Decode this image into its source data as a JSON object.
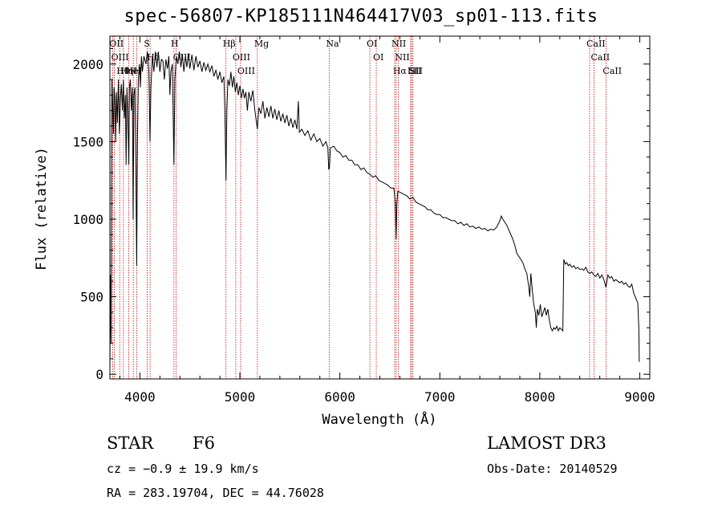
{
  "chart_data": {
    "type": "line",
    "title": "spec-56807-KP185111N464417V03_sp01-113.fits",
    "xlabel": "Wavelength (Å)",
    "ylabel": "Flux (relative)",
    "xlim": [
      3700,
      9100
    ],
    "ylim": [
      -30,
      2180
    ],
    "x_ticks": [
      4000,
      5000,
      6000,
      7000,
      8000,
      9000
    ],
    "y_ticks": [
      0,
      500,
      1000,
      1500,
      2000
    ],
    "x_tick_labels": [
      "4000",
      "5000",
      "6000",
      "7000",
      "8000",
      "9000"
    ],
    "y_tick_labels": [
      "0",
      "500",
      "1000",
      "1500",
      "2000"
    ],
    "series": [
      {
        "name": "flux",
        "points": [
          [
            3700,
            30
          ],
          [
            3705,
            640
          ],
          [
            3712,
            200
          ],
          [
            3720,
            1900
          ],
          [
            3728,
            1720
          ],
          [
            3735,
            1550
          ],
          [
            3742,
            1850
          ],
          [
            3750,
            1780
          ],
          [
            3758,
            1500
          ],
          [
            3766,
            1820
          ],
          [
            3775,
            1620
          ],
          [
            3785,
            1900
          ],
          [
            3795,
            1550
          ],
          [
            3805,
            1780
          ],
          [
            3815,
            1870
          ],
          [
            3825,
            1700
          ],
          [
            3835,
            1900
          ],
          [
            3845,
            1650
          ],
          [
            3855,
            1800
          ],
          [
            3862,
            1350
          ],
          [
            3870,
            1850
          ],
          [
            3878,
            1700
          ],
          [
            3889,
            1350
          ],
          [
            3895,
            1850
          ],
          [
            3905,
            1900
          ],
          [
            3915,
            1700
          ],
          [
            3925,
            1850
          ],
          [
            3933,
            1000
          ],
          [
            3940,
            1800
          ],
          [
            3950,
            1850
          ],
          [
            3960,
            1300
          ],
          [
            3968,
            700
          ],
          [
            3975,
            1500
          ],
          [
            3985,
            1900
          ],
          [
            3995,
            2000
          ],
          [
            4005,
            1850
          ],
          [
            4015,
            2050
          ],
          [
            4025,
            1950
          ],
          [
            4040,
            2050
          ],
          [
            4060,
            2000
          ],
          [
            4075,
            2080
          ],
          [
            4090,
            1950
          ],
          [
            4101,
            1500
          ],
          [
            4110,
            1850
          ],
          [
            4125,
            2050
          ],
          [
            4140,
            1950
          ],
          [
            4155,
            2080
          ],
          [
            4170,
            1980
          ],
          [
            4185,
            2080
          ],
          [
            4200,
            1950
          ],
          [
            4215,
            2030
          ],
          [
            4230,
            2020
          ],
          [
            4245,
            1900
          ],
          [
            4260,
            2030
          ],
          [
            4275,
            1970
          ],
          [
            4290,
            2050
          ],
          [
            4300,
            1800
          ],
          [
            4310,
            1950
          ],
          [
            4325,
            2000
          ],
          [
            4340,
            1350
          ],
          [
            4350,
            1900
          ],
          [
            4365,
            2050
          ],
          [
            4380,
            2000
          ],
          [
            4395,
            2080
          ],
          [
            4410,
            1980
          ],
          [
            4425,
            2060
          ],
          [
            4440,
            1950
          ],
          [
            4455,
            2050
          ],
          [
            4470,
            1980
          ],
          [
            4485,
            2070
          ],
          [
            4500,
            1970
          ],
          [
            4520,
            2060
          ],
          [
            4540,
            1960
          ],
          [
            4560,
            2050
          ],
          [
            4580,
            1980
          ],
          [
            4600,
            2020
          ],
          [
            4620,
            1950
          ],
          [
            4640,
            2010
          ],
          [
            4660,
            1960
          ],
          [
            4680,
            2000
          ],
          [
            4700,
            1950
          ],
          [
            4720,
            1990
          ],
          [
            4740,
            1920
          ],
          [
            4760,
            1960
          ],
          [
            4780,
            1900
          ],
          [
            4800,
            1950
          ],
          [
            4820,
            1880
          ],
          [
            4840,
            1920
          ],
          [
            4850,
            1700
          ],
          [
            4861,
            1250
          ],
          [
            4870,
            1700
          ],
          [
            4880,
            1900
          ],
          [
            4895,
            1860
          ],
          [
            4910,
            1950
          ],
          [
            4925,
            1850
          ],
          [
            4940,
            1920
          ],
          [
            4955,
            1820
          ],
          [
            4970,
            1880
          ],
          [
            4985,
            1800
          ],
          [
            5000,
            1860
          ],
          [
            5015,
            1780
          ],
          [
            5030,
            1840
          ],
          [
            5045,
            1780
          ],
          [
            5060,
            1820
          ],
          [
            5075,
            1700
          ],
          [
            5090,
            1820
          ],
          [
            5110,
            1760
          ],
          [
            5130,
            1830
          ],
          [
            5150,
            1700
          ],
          [
            5167,
            1620
          ],
          [
            5175,
            1580
          ],
          [
            5190,
            1720
          ],
          [
            5210,
            1680
          ],
          [
            5230,
            1760
          ],
          [
            5250,
            1650
          ],
          [
            5270,
            1720
          ],
          [
            5290,
            1660
          ],
          [
            5310,
            1730
          ],
          [
            5330,
            1650
          ],
          [
            5350,
            1710
          ],
          [
            5370,
            1640
          ],
          [
            5390,
            1700
          ],
          [
            5410,
            1630
          ],
          [
            5430,
            1680
          ],
          [
            5450,
            1620
          ],
          [
            5470,
            1670
          ],
          [
            5490,
            1600
          ],
          [
            5510,
            1650
          ],
          [
            5530,
            1590
          ],
          [
            5550,
            1640
          ],
          [
            5570,
            1580
          ],
          [
            5585,
            1760
          ],
          [
            5595,
            1560
          ],
          [
            5620,
            1580
          ],
          [
            5650,
            1540
          ],
          [
            5680,
            1570
          ],
          [
            5710,
            1510
          ],
          [
            5740,
            1550
          ],
          [
            5770,
            1500
          ],
          [
            5800,
            1520
          ],
          [
            5830,
            1470
          ],
          [
            5860,
            1500
          ],
          [
            5880,
            1460
          ],
          [
            5889,
            1320
          ],
          [
            5896,
            1330
          ],
          [
            5905,
            1460
          ],
          [
            5940,
            1470
          ],
          [
            5970,
            1440
          ],
          [
            6000,
            1430
          ],
          [
            6030,
            1400
          ],
          [
            6060,
            1410
          ],
          [
            6090,
            1380
          ],
          [
            6120,
            1380
          ],
          [
            6150,
            1350
          ],
          [
            6180,
            1350
          ],
          [
            6210,
            1320
          ],
          [
            6240,
            1330
          ],
          [
            6270,
            1300
          ],
          [
            6300,
            1290
          ],
          [
            6330,
            1270
          ],
          [
            6360,
            1280
          ],
          [
            6390,
            1250
          ],
          [
            6420,
            1240
          ],
          [
            6450,
            1230
          ],
          [
            6480,
            1220
          ],
          [
            6510,
            1200
          ],
          [
            6540,
            1200
          ],
          [
            6555,
            1100
          ],
          [
            6563,
            870
          ],
          [
            6570,
            1100
          ],
          [
            6580,
            1180
          ],
          [
            6610,
            1170
          ],
          [
            6640,
            1160
          ],
          [
            6670,
            1150
          ],
          [
            6700,
            1130
          ],
          [
            6730,
            1140
          ],
          [
            6760,
            1110
          ],
          [
            6790,
            1100
          ],
          [
            6820,
            1090
          ],
          [
            6850,
            1080
          ],
          [
            6880,
            1060
          ],
          [
            6910,
            1060
          ],
          [
            6940,
            1040
          ],
          [
            6970,
            1030
          ],
          [
            7000,
            1030
          ],
          [
            7030,
            1010
          ],
          [
            7060,
            1010
          ],
          [
            7090,
            1000
          ],
          [
            7120,
            990
          ],
          [
            7150,
            990
          ],
          [
            7180,
            970
          ],
          [
            7210,
            980
          ],
          [
            7240,
            960
          ],
          [
            7270,
            970
          ],
          [
            7300,
            950
          ],
          [
            7330,
            955
          ],
          [
            7360,
            940
          ],
          [
            7390,
            950
          ],
          [
            7420,
            935
          ],
          [
            7450,
            940
          ],
          [
            7480,
            925
          ],
          [
            7510,
            935
          ],
          [
            7540,
            930
          ],
          [
            7570,
            950
          ],
          [
            7600,
            990
          ],
          [
            7615,
            1020
          ],
          [
            7630,
            1000
          ],
          [
            7650,
            980
          ],
          [
            7670,
            960
          ],
          [
            7690,
            930
          ],
          [
            7710,
            900
          ],
          [
            7730,
            870
          ],
          [
            7750,
            830
          ],
          [
            7770,
            780
          ],
          [
            7790,
            760
          ],
          [
            7810,
            740
          ],
          [
            7830,
            720
          ],
          [
            7850,
            680
          ],
          [
            7870,
            650
          ],
          [
            7890,
            560
          ],
          [
            7900,
            500
          ],
          [
            7910,
            650
          ],
          [
            7925,
            540
          ],
          [
            7940,
            450
          ],
          [
            7955,
            400
          ],
          [
            7965,
            300
          ],
          [
            7975,
            420
          ],
          [
            7990,
            380
          ],
          [
            8005,
            450
          ],
          [
            8020,
            370
          ],
          [
            8035,
            400
          ],
          [
            8050,
            430
          ],
          [
            8065,
            380
          ],
          [
            8080,
            420
          ],
          [
            8095,
            350
          ],
          [
            8110,
            300
          ],
          [
            8125,
            280
          ],
          [
            8140,
            300
          ],
          [
            8155,
            290
          ],
          [
            8170,
            310
          ],
          [
            8185,
            280
          ],
          [
            8200,
            300
          ],
          [
            8215,
            290
          ],
          [
            8230,
            280
          ],
          [
            8240,
            740
          ],
          [
            8255,
            710
          ],
          [
            8270,
            720
          ],
          [
            8285,
            700
          ],
          [
            8300,
            710
          ],
          [
            8320,
            690
          ],
          [
            8340,
            700
          ],
          [
            8360,
            680
          ],
          [
            8380,
            690
          ],
          [
            8400,
            675
          ],
          [
            8420,
            680
          ],
          [
            8440,
            670
          ],
          [
            8460,
            690
          ],
          [
            8480,
            660
          ],
          [
            8500,
            650
          ],
          [
            8520,
            660
          ],
          [
            8540,
            640
          ],
          [
            8560,
            630
          ],
          [
            8580,
            650
          ],
          [
            8600,
            620
          ],
          [
            8620,
            640
          ],
          [
            8640,
            610
          ],
          [
            8662,
            560
          ],
          [
            8680,
            640
          ],
          [
            8700,
            620
          ],
          [
            8720,
            630
          ],
          [
            8740,
            600
          ],
          [
            8760,
            610
          ],
          [
            8780,
            600
          ],
          [
            8800,
            590
          ],
          [
            8820,
            600
          ],
          [
            8840,
            580
          ],
          [
            8860,
            590
          ],
          [
            8880,
            570
          ],
          [
            8900,
            560
          ],
          [
            8920,
            580
          ],
          [
            8940,
            520
          ],
          [
            8960,
            490
          ],
          [
            8980,
            460
          ],
          [
            8990,
            300
          ],
          [
            8995,
            80
          ]
        ]
      }
    ],
    "lines": [
      {
        "name": "Hθ",
        "x": 3798
      },
      {
        "name": "OII",
        "x": 3727
      },
      {
        "name": "OIII",
        "x": 3745
      },
      {
        "name": "K",
        "x": 3934
      },
      {
        "name": "HeI",
        "x": 3889
      },
      {
        "name": "Hη",
        "x": 3835
      },
      {
        "name": "Hδ",
        "x": 4102
      },
      {
        "name": "S",
        "x": 4072
      },
      {
        "name": "H",
        "x": 3969
      },
      {
        "name": "OIII",
        "x": 4363
      },
      {
        "name": "H",
        "x": 4341
      },
      {
        "name": "Hβ",
        "x": 4861
      },
      {
        "name": "OIII",
        "x": 4959
      },
      {
        "name": "OIII",
        "x": 5007
      },
      {
        "name": "Mg",
        "x": 5175
      },
      {
        "name": "Na",
        "x": 5893
      },
      {
        "name": "OI",
        "x": 6300
      },
      {
        "name": "OI",
        "x": 6364
      },
      {
        "name": "Hα",
        "x": 6563
      },
      {
        "name": "NII",
        "x": 6548
      },
      {
        "name": "NII",
        "x": 6584
      },
      {
        "name": "SII",
        "x": 6717
      },
      {
        "name": "SII",
        "x": 6731
      },
      {
        "name": "Li",
        "x": 6708
      },
      {
        "name": "CaII",
        "x": 8498
      },
      {
        "name": "CaII",
        "x": 8542
      },
      {
        "name": "CaII",
        "x": 8662
      }
    ],
    "line_color": "#d20000",
    "series_color": "#000000"
  },
  "info": {
    "object_class": "STAR",
    "subclass": "F6",
    "survey": "LAMOST DR3",
    "cz": "cz = −0.9 ± 19.9 km/s",
    "obs_date": "Obs-Date: 20140529",
    "coords": "RA = 283.19704, DEC =  44.76028"
  }
}
